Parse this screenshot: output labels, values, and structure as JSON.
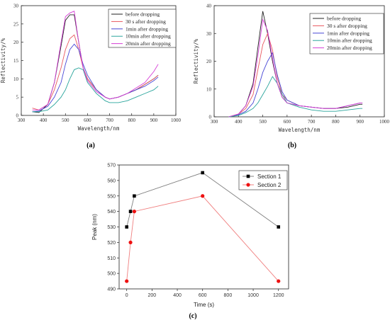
{
  "chart_data": [
    {
      "type": "line",
      "panel_label": "(a)",
      "xlabel": "Wavelength/nm",
      "ylabel": "Reflectivity/%",
      "xlim": [
        300,
        1000
      ],
      "ylim": [
        0,
        30
      ],
      "xticks": [
        300,
        400,
        500,
        600,
        700,
        800,
        900,
        1000
      ],
      "yticks": [
        0,
        5,
        10,
        15,
        20,
        25,
        30
      ],
      "legend_position": "top-right",
      "series": [
        {
          "name": "before dropping",
          "color": "#222222",
          "x": [
            350,
            380,
            420,
            450,
            480,
            500,
            520,
            540,
            560,
            580,
            600,
            640,
            680,
            700,
            740,
            780,
            820,
            860,
            900,
            920
          ],
          "y": [
            1,
            0.8,
            3,
            9,
            19,
            26,
            27.5,
            27.5,
            20,
            13,
            10,
            7,
            5,
            4.5,
            5,
            6,
            7,
            8.5,
            10,
            11
          ]
        },
        {
          "name": "30 s after dropping",
          "color": "#e8585e",
          "x": [
            350,
            380,
            420,
            450,
            480,
            500,
            520,
            540,
            560,
            580,
            600,
            640,
            680,
            700,
            740,
            780,
            820,
            860,
            900,
            920
          ],
          "y": [
            2,
            1.5,
            3,
            7,
            13,
            18,
            21,
            22,
            18,
            13,
            10,
            7,
            5,
            4.5,
            5,
            6,
            7,
            8.5,
            10,
            11
          ]
        },
        {
          "name": "1min after dropping",
          "color": "#4747d6",
          "x": [
            350,
            380,
            420,
            450,
            480,
            500,
            520,
            540,
            560,
            580,
            600,
            640,
            680,
            700,
            740,
            780,
            820,
            860,
            900,
            920
          ],
          "y": [
            1,
            1.2,
            2.5,
            5,
            9,
            14,
            18,
            19.5,
            18,
            14,
            11,
            7,
            5,
            4.5,
            5,
            6,
            7,
            8,
            9.5,
            10.5
          ]
        },
        {
          "name": "10min after dropping",
          "color": "#2aa59c",
          "x": [
            350,
            380,
            420,
            450,
            480,
            500,
            520,
            540,
            560,
            580,
            600,
            640,
            680,
            700,
            740,
            780,
            820,
            860,
            900,
            920
          ],
          "y": [
            1,
            1,
            1.5,
            3,
            5,
            7,
            10,
            12.5,
            13,
            12.5,
            9,
            6,
            4,
            3.5,
            3.5,
            4,
            5,
            6,
            7,
            8
          ]
        },
        {
          "name": "20min after dropping",
          "color": "#d63fd6",
          "x": [
            350,
            380,
            420,
            450,
            480,
            500,
            520,
            540,
            560,
            580,
            600,
            640,
            680,
            700,
            740,
            780,
            820,
            860,
            900,
            920
          ],
          "y": [
            1.5,
            1.5,
            3,
            9,
            20,
            27,
            28,
            28.5,
            20,
            13,
            9.5,
            6.5,
            5,
            4.5,
            5,
            6,
            7.5,
            9,
            12,
            14
          ]
        }
      ]
    },
    {
      "type": "line",
      "panel_label": "(b)",
      "xlabel": "Wavelength/nm",
      "ylabel": "Reflectivity/%",
      "xlim": [
        300,
        1000
      ],
      "ylim": [
        0,
        40
      ],
      "xticks": [
        300,
        400,
        500,
        600,
        700,
        800,
        900,
        1000
      ],
      "yticks": [
        0,
        10,
        20,
        30,
        40
      ],
      "legend_position": "top-right",
      "series": [
        {
          "name": "before dropping",
          "color": "#222222",
          "x": [
            360,
            400,
            430,
            460,
            480,
            500,
            520,
            540,
            560,
            580,
            600,
            650,
            700,
            750,
            800,
            850,
            900,
            910
          ],
          "y": [
            0,
            1,
            4,
            12,
            25,
            38,
            30,
            20,
            12,
            7,
            5,
            4,
            3.5,
            3,
            3,
            3.5,
            4.5,
            4.5
          ]
        },
        {
          "name": "30 s after dropping",
          "color": "#e8585e",
          "x": [
            360,
            400,
            430,
            460,
            480,
            500,
            520,
            540,
            560,
            580,
            600,
            650,
            700,
            750,
            800,
            850,
            900,
            910
          ],
          "y": [
            0,
            1,
            3,
            8,
            17,
            26,
            30,
            24,
            14,
            8,
            6,
            4,
            3.5,
            3,
            3,
            4,
            5,
            5
          ]
        },
        {
          "name": "1min after dropping",
          "color": "#4747d6",
          "x": [
            360,
            400,
            430,
            460,
            480,
            500,
            520,
            540,
            560,
            580,
            600,
            650,
            700,
            750,
            800,
            850,
            900,
            910
          ],
          "y": [
            0,
            0.8,
            2,
            5,
            10,
            16,
            20,
            23,
            15,
            9,
            6,
            4,
            3.5,
            3,
            3,
            4,
            5,
            5
          ]
        },
        {
          "name": "10min after dropping",
          "color": "#2aa59c",
          "x": [
            360,
            400,
            430,
            460,
            480,
            500,
            520,
            540,
            560,
            580,
            600,
            650,
            700,
            750,
            800,
            850,
            900,
            910
          ],
          "y": [
            0,
            0.5,
            1.5,
            3,
            5,
            8,
            11,
            14.5,
            12,
            8,
            5,
            3.5,
            2.5,
            2,
            2,
            2.5,
            3,
            3
          ]
        },
        {
          "name": "20min after dropping",
          "color": "#d63fd6",
          "x": [
            360,
            400,
            430,
            460,
            480,
            500,
            520,
            540,
            560,
            580,
            600,
            650,
            700,
            750,
            800,
            850,
            900,
            910
          ],
          "y": [
            0,
            1,
            4,
            11,
            22,
            35,
            31,
            21,
            12,
            7,
            5,
            4,
            3.5,
            3,
            3,
            4,
            5,
            5
          ]
        }
      ]
    },
    {
      "type": "line",
      "panel_label": "(c)",
      "xlabel": "Time (s)",
      "ylabel": "Peak (nm)",
      "xlim": [
        -60,
        1280
      ],
      "ylim": [
        490,
        570
      ],
      "xticks": [
        0,
        200,
        400,
        600,
        800,
        1000,
        1200
      ],
      "yticks": [
        490,
        500,
        510,
        520,
        530,
        540,
        550,
        560,
        570
      ],
      "legend_position": "top-right",
      "series": [
        {
          "name": "Section 1",
          "color": "#808080",
          "marker_color": "#000000",
          "x": [
            0,
            30,
            60,
            600,
            1200
          ],
          "y": [
            530,
            540,
            550,
            565,
            530
          ]
        },
        {
          "name": "Section 2",
          "color": "#f08080",
          "marker_color": "#ee1111",
          "x": [
            0,
            30,
            60,
            600,
            1200
          ],
          "y": [
            495,
            520,
            540,
            550,
            495
          ]
        }
      ]
    }
  ]
}
